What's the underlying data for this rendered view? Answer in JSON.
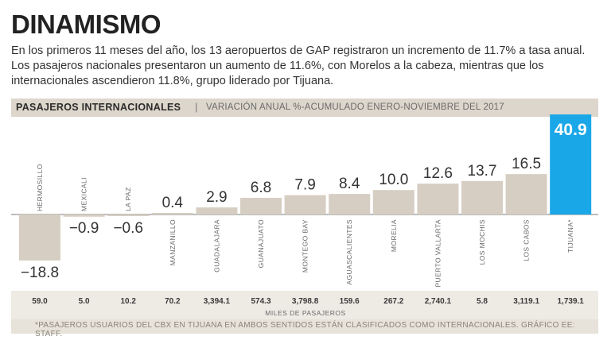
{
  "header": {
    "title": "DINAMISMO",
    "description": "En los primeros 11 meses del año, los 13 aeropuertos de GAP registraron un incremento de 11.7% a tasa anual. Los pasajeros nacionales presentaron un aumento de 11.6%, con Morelos a la cabeza, mientras que los  internacionales ascendieron 11.8%, grupo liderado por Tijuana."
  },
  "chart_header": {
    "label": "PASAJEROS INTERNACIONALES",
    "separator": "|",
    "subtitle": "VARIACIÓN ANUAL %-ACUMULADO ENERO-NOVIEMBRE DEL 2017"
  },
  "footnote": "*PASAJEROS USUARIOS DEL CBX EN TIJUANA EN AMBOS SENTIDOS ESTÁN CLASIFICADOS COMO INTERNACIONALES. GRÁFICO EE: STAFF.",
  "colors": {
    "bar": "#d6cec2",
    "highlight": "#1aa7e8",
    "text": "#333333"
  },
  "chart_data": {
    "type": "bar",
    "title": "PASAJEROS INTERNACIONALES",
    "subtitle": "VARIACIÓN ANUAL %-ACUMULADO ENERO-NOVIEMBRE DEL 2017",
    "categories": [
      "HERMOSILLO",
      "MEXICALI",
      "LA PAZ",
      "MANZANILLO",
      "GUADALAJARA",
      "GUANAJUATO",
      "MONTEGO BAY",
      "AGUASCALIENTES",
      "MORELIA",
      "PUERTO VALLARTA",
      "LOS MOCHIS",
      "LOS CABOS",
      "TIJUANA*"
    ],
    "values": [
      -18.8,
      -0.9,
      -0.6,
      0.4,
      2.9,
      6.8,
      7.9,
      8.4,
      10.0,
      12.6,
      13.7,
      16.5,
      40.9
    ],
    "value_labels": [
      "−18.8",
      "−0.9",
      "−0.6",
      "0.4",
      "2.9",
      "6.8",
      "7.9",
      "8.4",
      "10.0",
      "12.6",
      "13.7",
      "16.5",
      "40.9"
    ],
    "passengers": [
      "59.0",
      "5.0",
      "10.2",
      "70.2",
      "3,394.1",
      "574.3",
      "3,798.8",
      "159.6",
      "267.2",
      "2,740.1",
      "5.8",
      "3,119.1",
      "1,739.1"
    ],
    "passengers_label": "MILES DE PASAJEROS",
    "highlight_index": 12,
    "ylim": [
      -18.8,
      40.9
    ]
  }
}
